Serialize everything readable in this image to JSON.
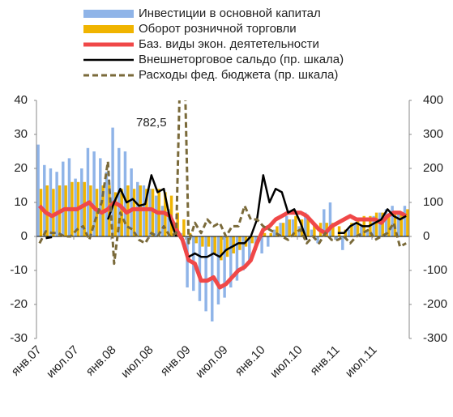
{
  "chart_data": {
    "type": "combo",
    "categories": [
      "янв.07",
      null,
      null,
      null,
      null,
      null,
      "июл.07",
      null,
      null,
      null,
      null,
      null,
      "янв.08",
      null,
      null,
      null,
      null,
      null,
      "июл.08",
      null,
      null,
      null,
      null,
      null,
      "янв.09",
      null,
      null,
      null,
      null,
      null,
      "июл.09",
      null,
      null,
      null,
      null,
      null,
      "янв.10",
      null,
      null,
      null,
      null,
      null,
      "июл.10",
      null,
      null,
      null,
      null,
      null,
      "янв.11",
      null,
      null,
      null,
      null,
      null,
      "июл.11",
      null,
      null,
      null,
      null,
      null
    ],
    "series": [
      {
        "name": "Инвестиции в основной капитал",
        "kind": "bar",
        "color": "#8fb4e8",
        "values": [
          27,
          21,
          20,
          19,
          22,
          23,
          17,
          20,
          26,
          25,
          23,
          19,
          32,
          26,
          25,
          20,
          16,
          15,
          14,
          12,
          9,
          8,
          2,
          1,
          -15,
          -16,
          -19,
          -22,
          -25,
          -20,
          -18,
          -15,
          -13,
          -10,
          -7,
          -4,
          -5,
          -3,
          2,
          4,
          6,
          5,
          3,
          7,
          2,
          -2,
          8,
          10,
          -1,
          -4,
          2,
          4,
          3,
          2,
          6,
          7,
          8,
          9,
          7,
          9
        ]
      },
      {
        "name": "Оборот розничной торговли",
        "kind": "bar",
        "color": "#f0b400",
        "values": [
          14,
          15,
          14,
          15,
          15,
          16,
          16,
          16,
          15,
          14,
          15,
          15,
          13,
          14,
          15,
          14,
          15,
          14,
          14,
          14,
          13,
          12,
          7,
          5,
          1,
          -2,
          -3,
          -3,
          -5,
          -7,
          -6,
          -5,
          -4,
          -3,
          -2,
          -1,
          1,
          1,
          3,
          4,
          5,
          6,
          5,
          5,
          4,
          4,
          4,
          4,
          3,
          2,
          4,
          5,
          6,
          6,
          7,
          7,
          6,
          7,
          7,
          8
        ]
      },
      {
        "name": "Баз. виды экон. деятетельности",
        "kind": "line",
        "color": "#f04848",
        "width": 5,
        "values": [
          9,
          7,
          6,
          7,
          8,
          8,
          8,
          9,
          10,
          8,
          7,
          8,
          10,
          9,
          7,
          8,
          8,
          8,
          8,
          7,
          7,
          6,
          2,
          -1,
          -7,
          -8,
          -13,
          -13,
          -12,
          -15,
          -14,
          -12,
          -10,
          -9,
          -7,
          -2,
          2,
          3,
          5,
          6,
          7,
          7,
          7,
          6,
          4,
          2,
          1,
          3,
          4,
          5,
          6,
          5,
          5,
          5,
          5,
          4,
          6,
          7,
          7,
          6
        ]
      },
      {
        "name": "Внешнеторговое сальдо (пр. шкала)",
        "kind": "line",
        "axis": "y2",
        "color": "#000000",
        "width": 2.5,
        "values": [
          null,
          -5,
          -2,
          null,
          null,
          null,
          null,
          null,
          null,
          null,
          null,
          50,
          100,
          140,
          100,
          110,
          90,
          95,
          180,
          130,
          140,
          50,
          0,
          null,
          -60,
          -50,
          -60,
          -60,
          -50,
          -60,
          -40,
          -30,
          -20,
          -20,
          0,
          50,
          180,
          100,
          140,
          130,
          70,
          80,
          40,
          -10,
          null,
          -30,
          null,
          null,
          10,
          10,
          30,
          40,
          30,
          30,
          40,
          50,
          80,
          60,
          50,
          60
        ]
      },
      {
        "name": "Расходы фед. бюджета (пр. шкала)",
        "kind": "line",
        "axis": "y2",
        "color": "#7a6a3a",
        "width": 3,
        "dash": true,
        "values": [
          -20,
          15,
          10,
          10,
          0,
          0,
          20,
          30,
          -10,
          50,
          100,
          220,
          -80,
          70,
          30,
          20,
          -10,
          -20,
          10,
          0,
          30,
          0,
          10,
          782.5,
          -20,
          40,
          10,
          50,
          30,
          40,
          0,
          30,
          30,
          90,
          50,
          50,
          30,
          20,
          10,
          0,
          -10,
          10,
          20,
          -20,
          0,
          -20,
          10,
          -10,
          -10,
          0,
          -20,
          0,
          10,
          20,
          -10,
          0,
          10,
          40,
          -30,
          -20
        ]
      }
    ],
    "annotation": "782,5",
    "ylim": [
      -30,
      40
    ],
    "yticks": [
      -30,
      -20,
      -10,
      0,
      10,
      20,
      30,
      40
    ],
    "y2lim": [
      -300,
      400
    ],
    "y2ticks": [
      -300,
      -200,
      -100,
      0,
      100,
      200,
      300,
      400
    ]
  }
}
